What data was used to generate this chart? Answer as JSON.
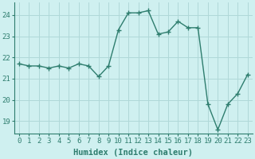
{
  "x": [
    0,
    1,
    2,
    3,
    4,
    5,
    6,
    7,
    8,
    9,
    10,
    11,
    12,
    13,
    14,
    15,
    16,
    17,
    18,
    19,
    20,
    21,
    22,
    23
  ],
  "y": [
    21.7,
    21.6,
    21.6,
    21.5,
    21.6,
    21.5,
    21.7,
    21.6,
    21.1,
    21.6,
    23.3,
    24.1,
    24.1,
    24.2,
    23.1,
    23.2,
    23.7,
    23.4,
    23.4,
    19.8,
    18.6,
    19.8,
    20.3,
    21.2
  ],
  "line_color": "#2e7d6e",
  "marker": "+",
  "markersize": 4.0,
  "linewidth": 1.0,
  "xlabel": "Humidex (Indice chaleur)",
  "xlabel_fontsize": 7.5,
  "ylim": [
    18.4,
    24.6
  ],
  "xlim": [
    -0.5,
    23.5
  ],
  "yticks": [
    19,
    20,
    21,
    22,
    23,
    24
  ],
  "xticks": [
    0,
    1,
    2,
    3,
    4,
    5,
    6,
    7,
    8,
    9,
    10,
    11,
    12,
    13,
    14,
    15,
    16,
    17,
    18,
    19,
    20,
    21,
    22,
    23
  ],
  "bg_color": "#cff0f0",
  "grid_color": "#b0d8d8",
  "tick_fontsize": 6.5,
  "spine_color": "#2e7d6e"
}
